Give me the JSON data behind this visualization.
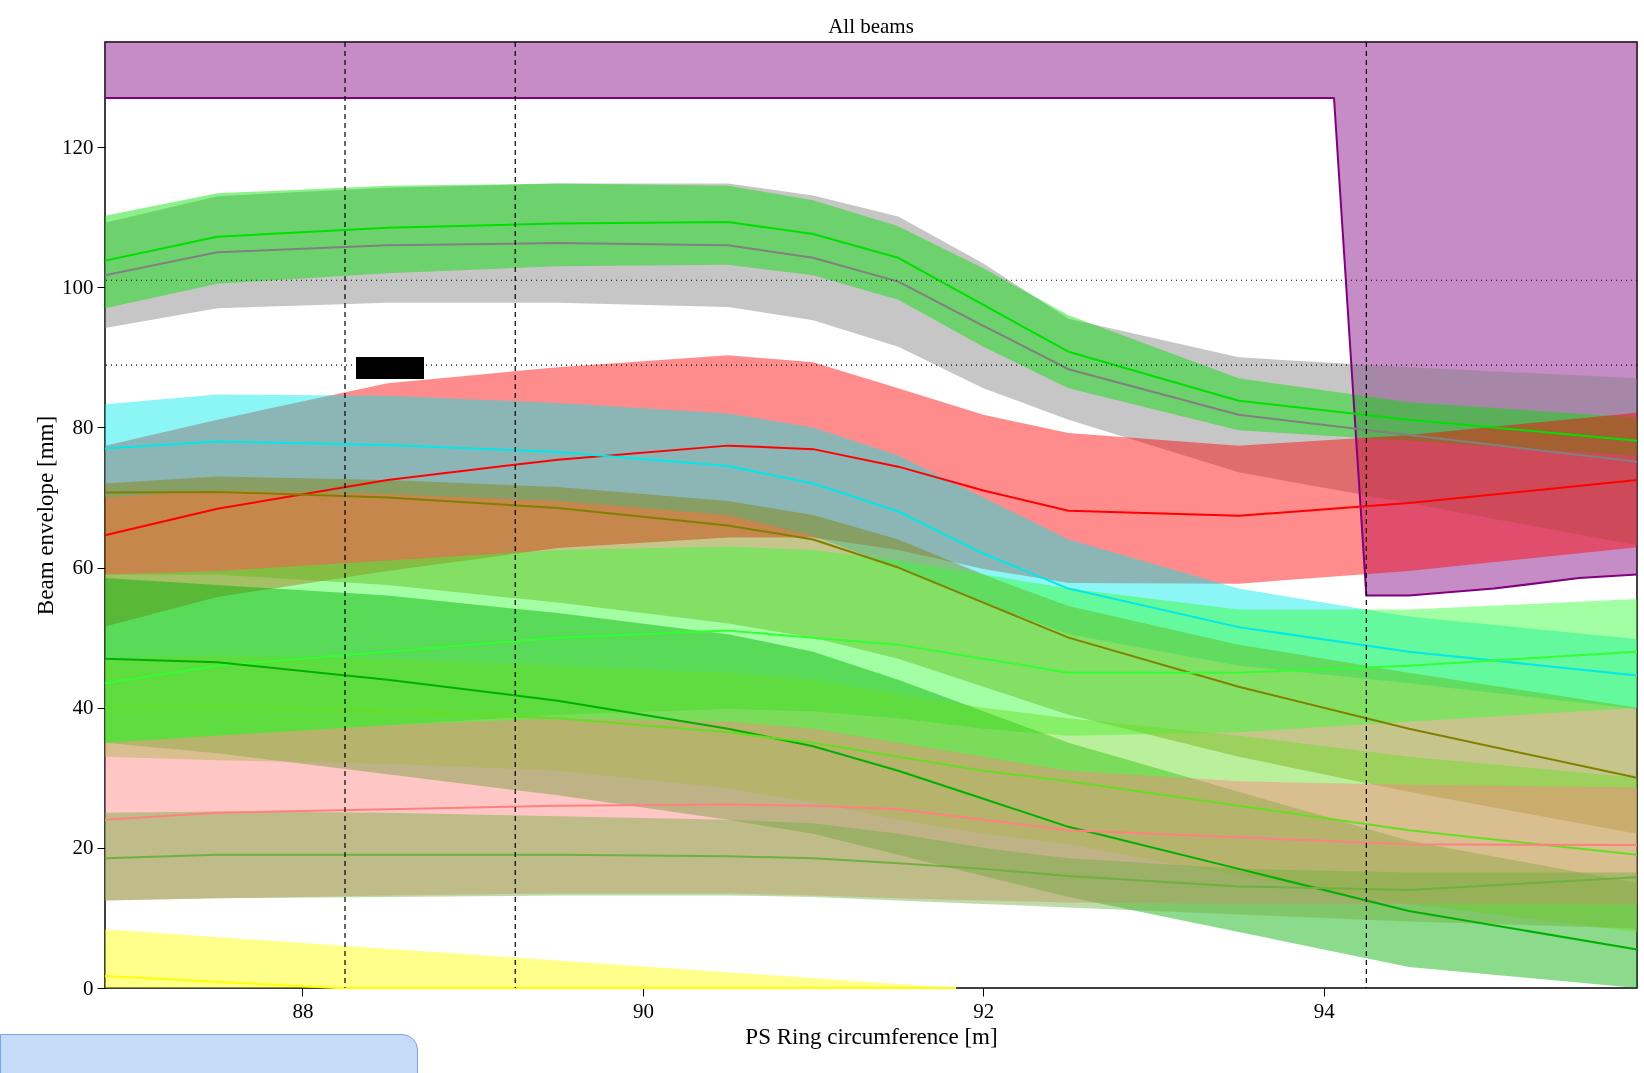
{
  "chart_data": {
    "type": "line",
    "title": "All beams",
    "xlabel": "PS Ring circumference [m]",
    "ylabel": "Beam envelope [mm]",
    "x": [
      86.84,
      87.5,
      88.5,
      89.5,
      90.5,
      91,
      91.5,
      92,
      92.5,
      93.5,
      94.5,
      95.84
    ],
    "xlim": [
      86.84,
      95.84
    ],
    "ylim": [
      0,
      135
    ],
    "xticks": [
      88,
      90,
      92,
      94
    ],
    "yticks": [
      0,
      20,
      40,
      60,
      80,
      100,
      120
    ],
    "grid": false,
    "ref_lines": [
      {
        "axis": "x",
        "value": 88.25,
        "line_style": "dashed"
      },
      {
        "axis": "x",
        "value": 89.25,
        "line_style": "dashed"
      },
      {
        "axis": "x",
        "value": 94.25,
        "line_style": "dashed"
      },
      {
        "axis": "y",
        "value": 101,
        "line_style": "dotted"
      },
      {
        "axis": "y",
        "value": 88.9,
        "line_style": "dotted"
      }
    ],
    "series": [
      {
        "color": "#800080",
        "x": [
          86.84,
          94.06,
          94.25,
          94.5,
          95,
          95.5,
          95.84
        ],
        "values": [
          127,
          127,
          56,
          56,
          57,
          58.5,
          59
        ],
        "lower": [
          127,
          127,
          56,
          56,
          57,
          58.5,
          59
        ],
        "upper": [
          135,
          135,
          135,
          135,
          135,
          135,
          135
        ]
      },
      {
        "color": "#808080",
        "values": [
          101.7,
          105,
          106,
          106.3,
          106,
          104.2,
          100.8,
          94.5,
          88.3,
          81.8,
          78.9,
          75.1
        ],
        "lower": [
          94.2,
          97,
          97.8,
          97.8,
          97.2,
          95.3,
          91.5,
          85.6,
          81.1,
          73.6,
          69.2,
          63.2
        ],
        "upper": [
          109.2,
          113,
          114.2,
          114.8,
          114.8,
          113.1,
          110.1,
          103.4,
          95.5,
          90,
          88.6,
          87
        ]
      },
      {
        "color": "#00e000",
        "values": [
          103.8,
          107.2,
          108.5,
          109.1,
          109.3,
          107.6,
          104.2,
          97.5,
          90.8,
          83.8,
          81.1,
          78.1
        ],
        "lower": [
          97,
          100.5,
          102,
          103,
          103.2,
          101.7,
          98.2,
          91.5,
          85.6,
          79.6,
          78.1,
          75.9
        ],
        "upper": [
          110.2,
          113.4,
          114.5,
          114.8,
          114.5,
          112.4,
          108.7,
          102.7,
          96,
          87,
          83.6,
          81.4
        ]
      },
      {
        "color": "#ff0000",
        "values": [
          64.6,
          68.4,
          72.5,
          75.4,
          77.4,
          76.9,
          74.4,
          71,
          68.1,
          67.4,
          69.2,
          72.5
        ],
        "lower": [
          51.6,
          55.8,
          59.5,
          62.8,
          64.3,
          64.3,
          62.5,
          59.8,
          57.8,
          57.7,
          59.5,
          62.9
        ],
        "upper": [
          77.4,
          81.1,
          86.3,
          88.6,
          90.3,
          89.3,
          85.6,
          81.8,
          79.2,
          77.4,
          78.9,
          82.1
        ]
      },
      {
        "color": "#00e8e8",
        "values": [
          77,
          78,
          77.5,
          76.5,
          74.5,
          72,
          68,
          62,
          57,
          51.5,
          48,
          44.6
        ],
        "lower": [
          70,
          71,
          70.5,
          69.5,
          67.5,
          64.5,
          60,
          55,
          50.5,
          46,
          43.5,
          39.8
        ],
        "upper": [
          83.3,
          84.7,
          84.5,
          83.5,
          82,
          80,
          76,
          70,
          64,
          57,
          53,
          49.8
        ]
      },
      {
        "color": "#808000",
        "values": [
          70.7,
          70.8,
          70,
          68.5,
          66,
          64,
          60,
          55,
          50,
          43,
          37,
          30
        ],
        "lower": [
          59,
          59,
          57.5,
          55,
          52,
          50,
          47,
          43,
          39,
          33,
          28,
          22
        ],
        "upper": [
          72,
          73,
          72.5,
          71.5,
          69.5,
          67.5,
          64,
          59,
          54.5,
          49,
          45,
          40
        ]
      },
      {
        "color": "#33ff33",
        "values": [
          43.5,
          46,
          48,
          50,
          51,
          50,
          49,
          47,
          45,
          45,
          46,
          48
        ],
        "lower": [
          35,
          36,
          37.5,
          39,
          39.8,
          39.5,
          38.5,
          37,
          36,
          36.5,
          38,
          40
        ],
        "upper": [
          59,
          59.5,
          61,
          62.5,
          63,
          62.5,
          61,
          59,
          57,
          54,
          54,
          55.5
        ]
      },
      {
        "color": "#00b000",
        "values": [
          47,
          46.5,
          44,
          41,
          37,
          34.5,
          31,
          27,
          23,
          17,
          11,
          5.5
        ],
        "lower": [
          35,
          33.5,
          30.5,
          27.5,
          24,
          22,
          19,
          16,
          13,
          8,
          3,
          0
        ],
        "upper": [
          58.5,
          57.5,
          56,
          53.5,
          50.5,
          48,
          44,
          39.5,
          35,
          28,
          21,
          15
        ]
      },
      {
        "color": "#66dd22",
        "values": [
          40,
          40.2,
          39.5,
          38.5,
          36.5,
          35,
          33,
          31,
          29.5,
          26,
          22.5,
          19
        ],
        "lower": [
          33,
          32.5,
          32,
          31,
          28.5,
          26.5,
          24,
          22,
          20.5,
          16,
          12,
          8
        ],
        "upper": [
          47,
          47.5,
          47,
          46,
          45,
          44,
          42,
          40,
          38.5,
          36,
          33,
          30
        ]
      },
      {
        "color": "#ff8080",
        "values": [
          24,
          25,
          25.5,
          26,
          26.2,
          26,
          25.5,
          24,
          22.5,
          21.5,
          20.5,
          20.4
        ],
        "lower": [
          12.5,
          12.8,
          13.2,
          13.5,
          13.5,
          13.2,
          12.8,
          12.5,
          12.2,
          12,
          12,
          11.9
        ],
        "upper": [
          35,
          36,
          37.5,
          38.5,
          38,
          37,
          35,
          33,
          31,
          29.5,
          29,
          28.6
        ]
      },
      {
        "color": "#70b040",
        "values": [
          18.5,
          19,
          19,
          19,
          18.8,
          18.5,
          17.8,
          17,
          16,
          14.5,
          14,
          15.8
        ],
        "lower": [
          12.5,
          12.8,
          13,
          13.2,
          13.2,
          13,
          12.5,
          12,
          11.5,
          10.5,
          9.5,
          8.5
        ],
        "upper": [
          25,
          25.2,
          25,
          24.5,
          24,
          23.5,
          22,
          20,
          18.5,
          17,
          16.5,
          16.5
        ]
      },
      {
        "color": "#ffff00",
        "x": [
          86.84,
          88.2,
          91.84
        ],
        "values": [
          1.7,
          0,
          0
        ],
        "lower": [
          0,
          0,
          0
        ],
        "upper": [
          8.4,
          6.1,
          0
        ]
      }
    ]
  }
}
